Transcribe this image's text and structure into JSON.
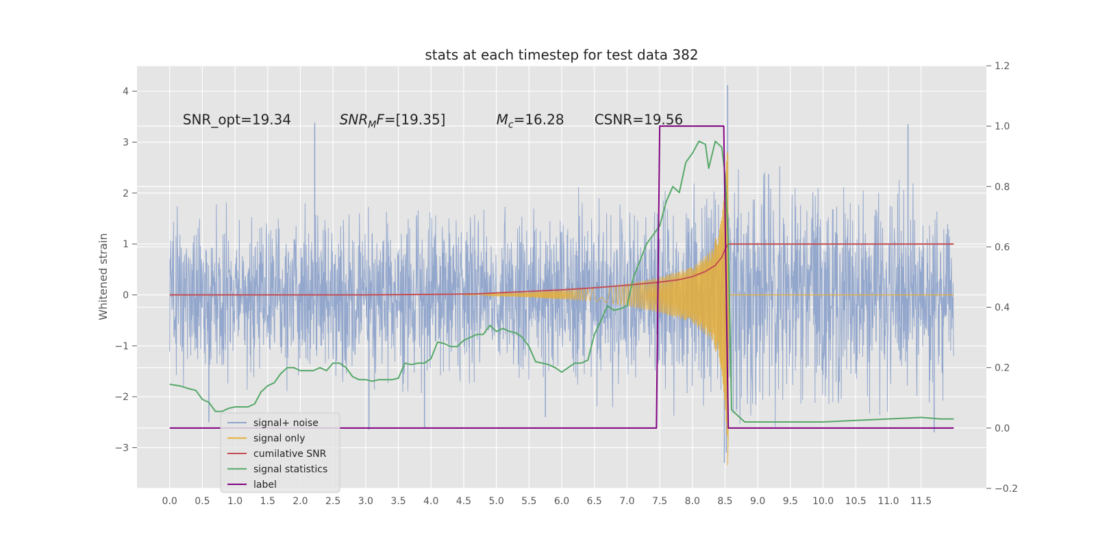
{
  "chart_data": {
    "type": "line",
    "title": "stats at each timestep for test data 382",
    "ylabel": "Whitened strain",
    "xlim": [
      -0.5,
      12.5
    ],
    "ylim": [
      -3.8,
      4.5
    ],
    "y2lim": [
      -0.2,
      1.2
    ],
    "grid": true,
    "legend_position": "lower-left",
    "x_ticks": [
      "0.0",
      "0.5",
      "1.0",
      "1.5",
      "2.0",
      "2.5",
      "3.0",
      "3.5",
      "4.0",
      "4.5",
      "5.0",
      "5.5",
      "6.0",
      "6.5",
      "7.0",
      "7.5",
      "8.0",
      "8.5",
      "9.0",
      "9.5",
      "10.0",
      "10.5",
      "11.0",
      "11.5"
    ],
    "y_ticks": [
      "4",
      "3",
      "2",
      "1",
      "0",
      "−1",
      "−2",
      "−3"
    ],
    "y2_ticks": [
      "1.2",
      "1.0",
      "0.8",
      "0.6",
      "0.4",
      "0.2",
      "0.0",
      "−0.2"
    ],
    "annotations": [
      {
        "id": "snr_opt",
        "text": "SNR_opt=19.34",
        "x": 0.2,
        "y": 3.35
      },
      {
        "id": "snr_mf",
        "text": "SNR",
        "sub": "M",
        "tail": "F=[19.35]",
        "x": 2.6,
        "y": 3.35
      },
      {
        "id": "mc",
        "text": "M",
        "sub": "c",
        "tail": "=16.28",
        "x": 5.0,
        "y": 3.35
      },
      {
        "id": "csnr",
        "text": "CSNR=19.56",
        "x": 6.5,
        "y": 3.35
      }
    ],
    "series": [
      {
        "name": "signal+ noise",
        "color": "#8ea3cb",
        "axis": "left",
        "kind": "noise",
        "x_range": [
          0,
          12.0
        ],
        "envelope": [
          [
            0,
            1.6
          ],
          [
            4,
            1.7
          ],
          [
            7.5,
            1.9
          ],
          [
            8.5,
            2.6
          ],
          [
            12,
            1.7
          ]
        ],
        "spikes": [
          [
            2.22,
            3.38
          ],
          [
            8.54,
            4.12
          ],
          [
            11.3,
            3.35
          ],
          [
            8.49,
            -3.3
          ],
          [
            8.52,
            -3.1
          ],
          [
            0.6,
            -2.5
          ],
          [
            3.05,
            -2.65
          ],
          [
            3.9,
            -2.6
          ],
          [
            5.75,
            -2.4
          ],
          [
            11.7,
            -2.7
          ]
        ]
      },
      {
        "name": "signal only",
        "color": "#e5ae38",
        "axis": "left",
        "kind": "chirp",
        "x_range": [
          4.5,
          8.55
        ],
        "amp_points": [
          [
            4.5,
            0
          ],
          [
            5.5,
            0.05
          ],
          [
            6.5,
            0.12
          ],
          [
            7.0,
            0.22
          ],
          [
            7.5,
            0.35
          ],
          [
            8.0,
            0.55
          ],
          [
            8.3,
            0.9
          ],
          [
            8.45,
            1.5
          ],
          [
            8.5,
            2.2
          ],
          [
            8.53,
            2.8
          ],
          [
            8.54,
            -3.35
          ],
          [
            8.56,
            0
          ]
        ],
        "tail": [
          [
            8.56,
            0
          ],
          [
            12.0,
            0
          ]
        ]
      },
      {
        "name": "cumilative SNR",
        "color": "#c44e52",
        "axis": "left",
        "x": [
          0,
          1,
          2,
          3,
          4,
          4.7,
          5.2,
          6.0,
          6.5,
          7.0,
          7.5,
          7.8,
          8.0,
          8.2,
          8.35,
          8.45,
          8.5,
          8.55,
          12.0
        ],
        "values": [
          0,
          0,
          0,
          0,
          0.01,
          0.02,
          0.05,
          0.1,
          0.14,
          0.19,
          0.25,
          0.3,
          0.36,
          0.46,
          0.58,
          0.74,
          0.9,
          1.0,
          1.0
        ]
      },
      {
        "name": "signal statistics",
        "color": "#55a868",
        "axis": "right",
        "x": [
          0,
          0.15,
          0.3,
          0.4,
          0.5,
          0.6,
          0.7,
          0.8,
          0.9,
          1.0,
          1.1,
          1.2,
          1.3,
          1.4,
          1.5,
          1.6,
          1.7,
          1.8,
          1.9,
          2.0,
          2.1,
          2.2,
          2.3,
          2.4,
          2.5,
          2.6,
          2.7,
          2.8,
          2.9,
          3.0,
          3.1,
          3.2,
          3.3,
          3.4,
          3.5,
          3.6,
          3.7,
          3.8,
          3.9,
          4.0,
          4.1,
          4.2,
          4.3,
          4.4,
          4.5,
          4.6,
          4.7,
          4.8,
          4.9,
          5.0,
          5.1,
          5.2,
          5.3,
          5.4,
          5.5,
          5.6,
          5.7,
          5.8,
          5.9,
          6.0,
          6.1,
          6.2,
          6.3,
          6.4,
          6.5,
          6.6,
          6.7,
          6.8,
          6.9,
          7.0,
          7.1,
          7.2,
          7.3,
          7.4,
          7.5,
          7.6,
          7.7,
          7.8,
          7.9,
          8.0,
          8.1,
          8.2,
          8.25,
          8.35,
          8.45,
          8.5,
          8.55,
          8.6,
          8.8,
          9.0,
          10.0,
          11.0,
          11.5,
          11.8,
          12.0
        ],
        "values": [
          0.145,
          0.14,
          0.13,
          0.125,
          0.095,
          0.085,
          0.055,
          0.055,
          0.065,
          0.07,
          0.07,
          0.07,
          0.08,
          0.12,
          0.14,
          0.15,
          0.18,
          0.2,
          0.2,
          0.19,
          0.19,
          0.19,
          0.2,
          0.19,
          0.215,
          0.215,
          0.2,
          0.17,
          0.16,
          0.16,
          0.155,
          0.16,
          0.16,
          0.16,
          0.165,
          0.215,
          0.21,
          0.215,
          0.215,
          0.23,
          0.285,
          0.28,
          0.27,
          0.27,
          0.29,
          0.3,
          0.31,
          0.31,
          0.34,
          0.32,
          0.33,
          0.32,
          0.315,
          0.3,
          0.27,
          0.22,
          0.215,
          0.21,
          0.2,
          0.185,
          0.2,
          0.215,
          0.215,
          0.225,
          0.31,
          0.355,
          0.405,
          0.39,
          0.395,
          0.405,
          0.5,
          0.555,
          0.61,
          0.64,
          0.67,
          0.75,
          0.8,
          0.78,
          0.88,
          0.91,
          0.95,
          0.94,
          0.86,
          0.95,
          0.93,
          0.84,
          0.62,
          0.06,
          0.02,
          0.02,
          0.02,
          0.03,
          0.035,
          0.03,
          0.03
        ]
      },
      {
        "name": "label",
        "color": "#800080",
        "axis": "right",
        "x": [
          0,
          7.45,
          7.5,
          8.48,
          8.55,
          12.0
        ],
        "values": [
          0,
          0,
          1,
          1,
          0,
          0
        ]
      }
    ]
  }
}
